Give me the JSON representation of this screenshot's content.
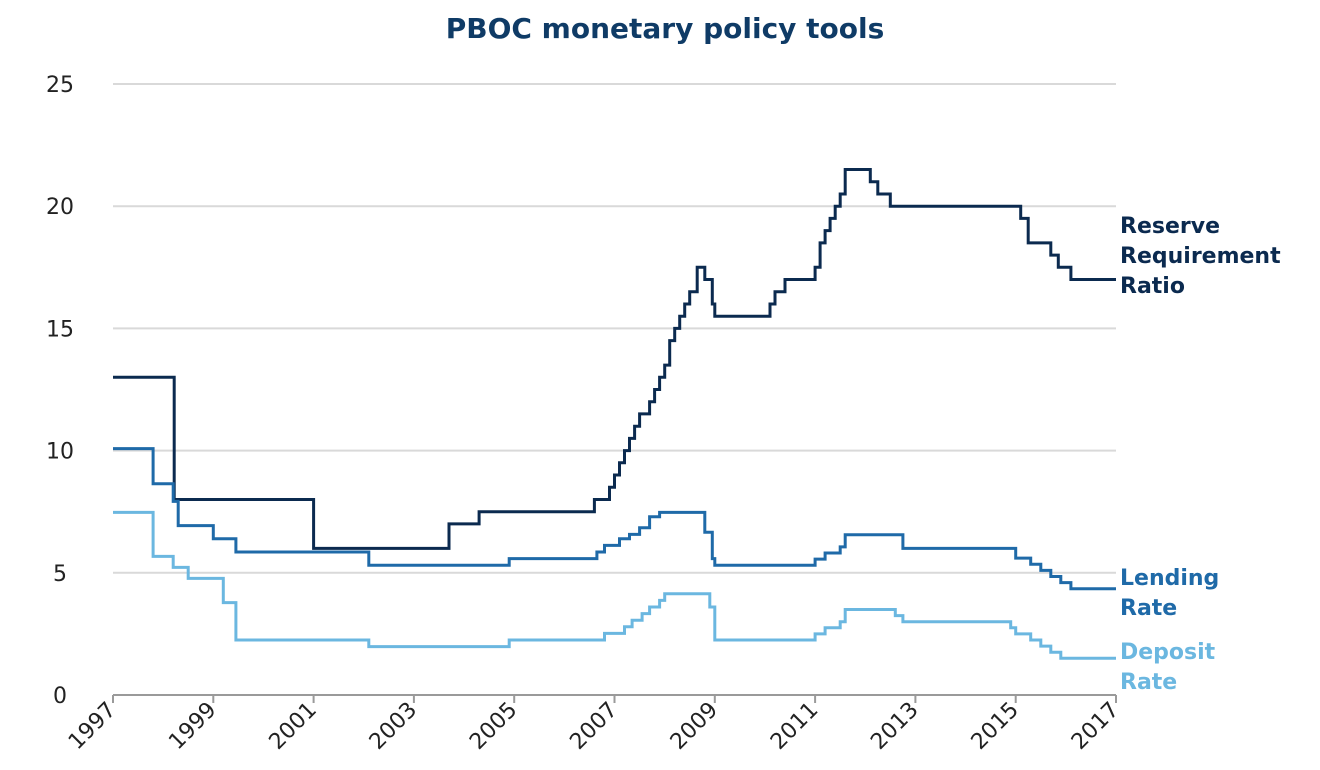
{
  "chart_data": {
    "type": "line",
    "title": "PBOC monetary policy tools",
    "xlabel": "",
    "ylabel": "",
    "xlim": [
      1997,
      2017
    ],
    "ylim": [
      0,
      25
    ],
    "x_ticks": [
      "1997",
      "1999",
      "2001",
      "2003",
      "2005",
      "2007",
      "2009",
      "2011",
      "2013",
      "2015",
      "2017"
    ],
    "y_ticks": [
      "0",
      "5",
      "10",
      "15",
      "20",
      "25"
    ],
    "grid": true,
    "line_style": "step",
    "colors": {
      "title": "#0f3b66",
      "grid": "#d9d9d9",
      "axis": "#9a9a9a"
    },
    "series": [
      {
        "name": "Reserve Requirement Ratio",
        "label_lines": [
          "Reserve",
          "Requirement",
          "Ratio"
        ],
        "color": "#0b2a4f",
        "x": [
          1997.0,
          1998.2,
          1998.22,
          1999.9,
          2001.0,
          2003.0,
          2003.7,
          2004.3,
          2005.0,
          2006.5,
          2006.6,
          2006.9,
          2007.0,
          2007.1,
          2007.2,
          2007.3,
          2007.4,
          2007.5,
          2007.7,
          2007.8,
          2007.9,
          2008.0,
          2008.1,
          2008.2,
          2008.3,
          2008.4,
          2008.5,
          2008.65,
          2008.8,
          2008.95,
          2009.0,
          2010.0,
          2010.1,
          2010.2,
          2010.4,
          2010.9,
          2011.0,
          2011.1,
          2011.2,
          2011.3,
          2011.4,
          2011.5,
          2011.6,
          2011.95,
          2012.1,
          2012.25,
          2012.4,
          2012.5,
          2013.0,
          2015.0,
          2015.1,
          2015.25,
          2015.6,
          2015.7,
          2015.85,
          2016.1,
          2017.0
        ],
        "y": [
          13.0,
          13.0,
          8.0,
          8.0,
          6.0,
          6.0,
          7.0,
          7.5,
          7.5,
          7.5,
          8.0,
          8.5,
          9.0,
          9.5,
          10.0,
          10.5,
          11.0,
          11.5,
          12.0,
          12.5,
          13.0,
          13.5,
          14.5,
          15.0,
          15.5,
          16.0,
          16.5,
          17.5,
          17.0,
          16.0,
          15.5,
          15.5,
          16.0,
          16.5,
          17.0,
          17.0,
          17.5,
          18.5,
          19.0,
          19.5,
          20.0,
          20.5,
          21.5,
          21.5,
          21.0,
          20.5,
          20.5,
          20.0,
          20.0,
          20.0,
          19.5,
          18.5,
          18.5,
          18.0,
          17.5,
          17.0,
          17.0
        ]
      },
      {
        "name": "Lending Rate",
        "label_lines": [
          "Lending",
          "Rate"
        ],
        "color": "#1f6aa8",
        "x": [
          1997.0,
          1997.8,
          1998.2,
          1998.3,
          1998.5,
          1999.0,
          1999.2,
          1999.45,
          2001.0,
          2002.1,
          2003.0,
          2004.9,
          2005.0,
          2006.65,
          2006.8,
          2007.0,
          2007.1,
          2007.3,
          2007.5,
          2007.7,
          2007.9,
          2008.0,
          2008.5,
          2008.8,
          2008.95,
          2009.0,
          2010.8,
          2011.0,
          2011.2,
          2011.5,
          2011.6,
          2012.6,
          2012.75,
          2013.0,
          2014.9,
          2015.0,
          2015.3,
          2015.5,
          2015.7,
          2015.9,
          2016.1,
          2017.0
        ],
        "y": [
          10.08,
          8.64,
          7.92,
          6.93,
          6.93,
          6.39,
          6.39,
          5.85,
          5.85,
          5.31,
          5.31,
          5.58,
          5.58,
          5.85,
          6.12,
          6.12,
          6.39,
          6.57,
          6.84,
          7.29,
          7.47,
          7.47,
          7.47,
          6.66,
          5.58,
          5.31,
          5.31,
          5.56,
          5.81,
          6.06,
          6.56,
          6.56,
          6.0,
          6.0,
          6.0,
          5.6,
          5.35,
          5.1,
          4.85,
          4.6,
          4.35,
          4.35
        ]
      },
      {
        "name": "Deposit Rate",
        "label_lines": [
          "Deposit",
          "Rate"
        ],
        "color": "#6bb7e0",
        "x": [
          1997.0,
          1997.4,
          1997.8,
          1998.2,
          1998.5,
          1999.0,
          1999.2,
          1999.45,
          2001.0,
          2002.1,
          2003.0,
          2004.9,
          2005.0,
          2006.8,
          2007.0,
          2007.2,
          2007.35,
          2007.55,
          2007.7,
          2007.9,
          2008.0,
          2008.75,
          2008.9,
          2009.0,
          2010.8,
          2011.0,
          2011.2,
          2011.5,
          2011.6,
          2012.6,
          2012.75,
          2013.0,
          2014.9,
          2015.0,
          2015.3,
          2015.5,
          2015.7,
          2015.9,
          2016.1,
          2017.0
        ],
        "y": [
          7.47,
          7.47,
          5.67,
          5.22,
          4.77,
          4.77,
          3.78,
          2.25,
          2.25,
          1.98,
          1.98,
          2.25,
          2.25,
          2.52,
          2.52,
          2.79,
          3.06,
          3.33,
          3.6,
          3.87,
          4.14,
          4.14,
          3.6,
          2.25,
          2.25,
          2.5,
          2.75,
          3.0,
          3.5,
          3.25,
          3.0,
          3.0,
          2.75,
          2.5,
          2.25,
          2.0,
          1.75,
          1.5,
          1.5,
          1.5
        ]
      }
    ]
  }
}
